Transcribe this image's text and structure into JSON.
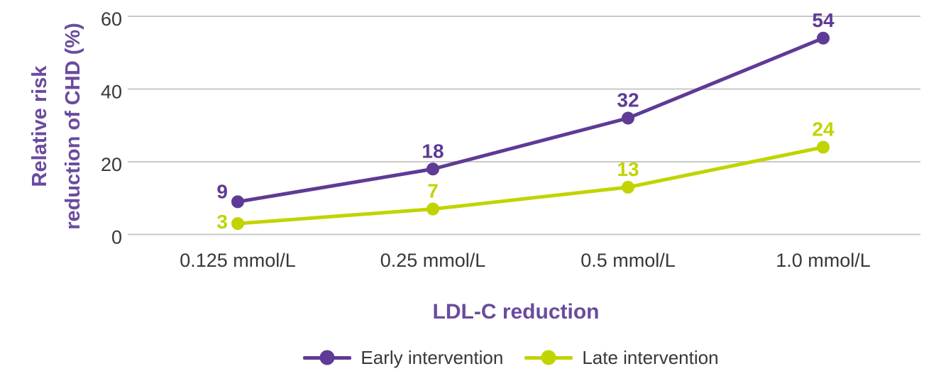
{
  "chart_data": {
    "type": "line",
    "title": "",
    "xlabel": "LDL-C reduction",
    "ylabel": "Relative risk reduction of CHD (%)",
    "ylabel_lines": [
      "Relative risk",
      "reduction of CHD (%)"
    ],
    "categories": [
      "0.125 mmol/L",
      "0.25 mmol/L",
      "0.5 mmol/L",
      "1.0 mmol/L"
    ],
    "series": [
      {
        "name": "Early intervention",
        "values": [
          9,
          18,
          32,
          54
        ],
        "color": "#5e3b96"
      },
      {
        "name": "Late intervention",
        "values": [
          3,
          7,
          13,
          24
        ],
        "color": "#c1d400"
      }
    ],
    "yticks": [
      0,
      20,
      40,
      60
    ],
    "ylim": [
      0,
      60
    ],
    "grid": "horizontal-only",
    "legend_position": "bottom",
    "data_labels_shown": true
  },
  "colors": {
    "axis_title_purple": "#6a4b9e",
    "tick_text": "#3b3734",
    "gridline": "#c8c8c8",
    "background": "#ffffff"
  }
}
